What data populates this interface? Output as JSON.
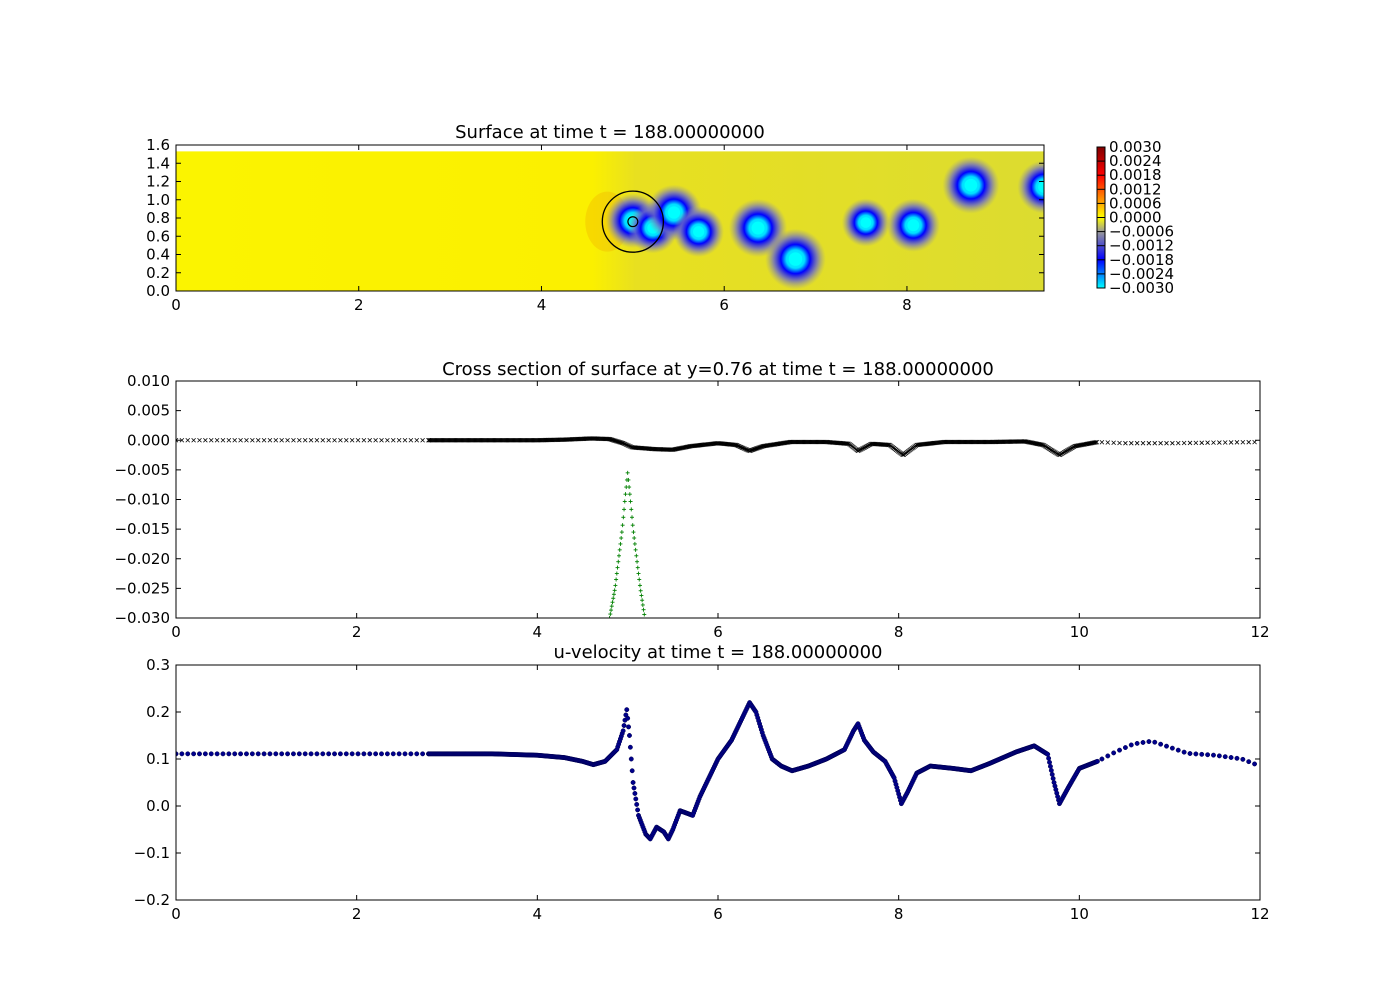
{
  "figure": {
    "background": "#ffffff"
  },
  "chart_data": [
    {
      "type": "heatmap",
      "title": "Surface at time t =   188.00000000",
      "xlim": [
        0,
        9.5
      ],
      "ylim": [
        0,
        1.6
      ],
      "xticks": [
        "0",
        "2",
        "4",
        "6",
        "8"
      ],
      "xtick_values": [
        0,
        2,
        4,
        6,
        8
      ],
      "yticks": [
        "0.0",
        "0.2",
        "0.4",
        "0.6",
        "0.8",
        "1.0",
        "1.2",
        "1.4",
        "1.6"
      ],
      "ytick_values": [
        0,
        0.2,
        0.4,
        0.6,
        0.8,
        1.0,
        1.2,
        1.4,
        1.6
      ],
      "domain_ymax": 1.53,
      "background_value": 0.0,
      "colorbar": {
        "vmin": -0.003,
        "vmax": 0.003,
        "ticks": [
          "0.0030",
          "0.0024",
          "0.0018",
          "0.0012",
          "0.0006",
          "0.0000",
          "−0.0006",
          "−0.0012",
          "−0.0018",
          "−0.0024",
          "−0.0030"
        ],
        "tick_values": [
          0.003,
          0.0024,
          0.0018,
          0.0012,
          0.0006,
          0.0,
          -0.0006,
          -0.0012,
          -0.0018,
          -0.0024,
          -0.003
        ],
        "colors": [
          "#00ffff",
          "#0000ff",
          "#9a9a9a",
          "#ffff00",
          "#ff0000",
          "#800000"
        ]
      },
      "vortices": [
        {
          "x": 5.0,
          "y": 0.77,
          "strength": -0.0025
        },
        {
          "x": 5.22,
          "y": 0.69,
          "strength": -0.0022
        },
        {
          "x": 5.45,
          "y": 0.86,
          "strength": -0.0026
        },
        {
          "x": 5.72,
          "y": 0.65,
          "strength": -0.0022
        },
        {
          "x": 6.37,
          "y": 0.69,
          "strength": -0.0028
        },
        {
          "x": 6.78,
          "y": 0.35,
          "strength": -0.003
        },
        {
          "x": 7.55,
          "y": 0.75,
          "strength": -0.002
        },
        {
          "x": 8.07,
          "y": 0.72,
          "strength": -0.0024
        },
        {
          "x": 8.7,
          "y": 1.16,
          "strength": -0.0027
        },
        {
          "x": 9.5,
          "y": 1.14,
          "strength": -0.0024
        }
      ],
      "circle": {
        "x": 5.0,
        "y": 0.76,
        "r": 0.35
      },
      "inner_circle": {
        "x": 5.0,
        "y": 0.76,
        "r": 0.06
      }
    },
    {
      "type": "scatter",
      "title": "Cross section of surface at y=0.76 at time t =   188.00000000",
      "xlim": [
        0,
        12
      ],
      "ylim": [
        -0.03,
        0.01
      ],
      "xticks": [
        "0",
        "2",
        "4",
        "6",
        "8",
        "10",
        "12"
      ],
      "xtick_values": [
        0,
        2,
        4,
        6,
        8,
        10,
        12
      ],
      "yticks": [
        "0.010",
        "0.005",
        "0.000",
        "−0.005",
        "−0.010",
        "−0.015",
        "−0.020",
        "−0.025",
        "−0.030"
      ],
      "ytick_values": [
        0.01,
        0.005,
        0.0,
        -0.005,
        -0.01,
        -0.015,
        -0.02,
        -0.025,
        -0.03
      ],
      "series": [
        {
          "marker": "x",
          "color": "#000000",
          "points": [
            [
              0,
              0
            ],
            [
              0.5,
              0
            ],
            [
              1,
              0
            ],
            [
              1.5,
              0
            ],
            [
              2,
              0
            ],
            [
              2.5,
              0
            ],
            [
              2.8,
              0
            ],
            [
              3.5,
              0
            ],
            [
              4,
              0
            ],
            [
              4.3,
              0.0001
            ],
            [
              4.6,
              0.0003
            ],
            [
              4.8,
              0.0002
            ],
            [
              4.95,
              -0.0005
            ],
            [
              5.05,
              -0.0012
            ],
            [
              5.3,
              -0.0015
            ],
            [
              5.5,
              -0.0016
            ],
            [
              5.7,
              -0.001
            ],
            [
              6.0,
              -0.0005
            ],
            [
              6.2,
              -0.0008
            ],
            [
              6.35,
              -0.0018
            ],
            [
              6.5,
              -0.001
            ],
            [
              6.8,
              -0.0003
            ],
            [
              7.2,
              -0.0003
            ],
            [
              7.45,
              -0.0006
            ],
            [
              7.55,
              -0.0018
            ],
            [
              7.7,
              -0.0006
            ],
            [
              7.9,
              -0.0008
            ],
            [
              8.05,
              -0.0025
            ],
            [
              8.2,
              -0.0008
            ],
            [
              8.5,
              -0.0003
            ],
            [
              9.0,
              -0.0003
            ],
            [
              9.4,
              -0.0002
            ],
            [
              9.6,
              -0.0008
            ],
            [
              9.78,
              -0.0025
            ],
            [
              9.95,
              -0.001
            ],
            [
              10.2,
              -0.0003
            ],
            [
              10.5,
              -0.0005
            ],
            [
              11.0,
              -0.0005
            ],
            [
              11.5,
              -0.0004
            ],
            [
              12,
              -0.0003
            ]
          ]
        },
        {
          "marker": "+",
          "color": "#008000",
          "points": [
            [
              4.8,
              -0.03
            ],
            [
              4.86,
              -0.025
            ],
            [
              4.9,
              -0.02
            ],
            [
              4.94,
              -0.015
            ],
            [
              4.97,
              -0.01
            ],
            [
              5.0,
              -0.0055
            ],
            [
              5.03,
              -0.01
            ],
            [
              5.06,
              -0.015
            ],
            [
              5.1,
              -0.02
            ],
            [
              5.14,
              -0.025
            ],
            [
              5.19,
              -0.03
            ]
          ]
        }
      ]
    },
    {
      "type": "scatter",
      "title": "u-velocity at time t =   188.00000000",
      "xlim": [
        0,
        12
      ],
      "ylim": [
        -0.2,
        0.3
      ],
      "xticks": [
        "0",
        "2",
        "4",
        "6",
        "8",
        "10",
        "12"
      ],
      "xtick_values": [
        0,
        2,
        4,
        6,
        8,
        10,
        12
      ],
      "yticks": [
        "0.3",
        "0.2",
        "0.1",
        "0.0",
        "−0.1",
        "−0.2"
      ],
      "ytick_values": [
        0.3,
        0.2,
        0.1,
        0.0,
        -0.1,
        -0.2
      ],
      "series": [
        {
          "marker": "o",
          "color": "#00008b",
          "points": [
            [
              0,
              0.111
            ],
            [
              1,
              0.111
            ],
            [
              2,
              0.111
            ],
            [
              2.8,
              0.111
            ],
            [
              3.5,
              0.111
            ],
            [
              4,
              0.108
            ],
            [
              4.3,
              0.103
            ],
            [
              4.5,
              0.095
            ],
            [
              4.62,
              0.088
            ],
            [
              4.75,
              0.095
            ],
            [
              4.88,
              0.12
            ],
            [
              4.95,
              0.16
            ],
            [
              4.99,
              0.205
            ],
            [
              5.02,
              0.15
            ],
            [
              5.06,
              0.05
            ],
            [
              5.12,
              -0.02
            ],
            [
              5.2,
              -0.06
            ],
            [
              5.25,
              -0.07
            ],
            [
              5.32,
              -0.045
            ],
            [
              5.4,
              -0.055
            ],
            [
              5.45,
              -0.07
            ],
            [
              5.5,
              -0.05
            ],
            [
              5.58,
              -0.01
            ],
            [
              5.65,
              -0.015
            ],
            [
              5.72,
              -0.02
            ],
            [
              5.8,
              0.02
            ],
            [
              5.9,
              0.06
            ],
            [
              6.0,
              0.1
            ],
            [
              6.15,
              0.14
            ],
            [
              6.25,
              0.18
            ],
            [
              6.35,
              0.22
            ],
            [
              6.42,
              0.2
            ],
            [
              6.5,
              0.15
            ],
            [
              6.6,
              0.1
            ],
            [
              6.7,
              0.085
            ],
            [
              6.82,
              0.075
            ],
            [
              7.0,
              0.085
            ],
            [
              7.2,
              0.1
            ],
            [
              7.4,
              0.12
            ],
            [
              7.5,
              0.16
            ],
            [
              7.55,
              0.175
            ],
            [
              7.62,
              0.14
            ],
            [
              7.72,
              0.115
            ],
            [
              7.85,
              0.095
            ],
            [
              7.95,
              0.06
            ],
            [
              8.03,
              0.005
            ],
            [
              8.1,
              0.03
            ],
            [
              8.2,
              0.07
            ],
            [
              8.35,
              0.085
            ],
            [
              8.6,
              0.08
            ],
            [
              8.8,
              0.075
            ],
            [
              9.0,
              0.09
            ],
            [
              9.3,
              0.115
            ],
            [
              9.5,
              0.128
            ],
            [
              9.65,
              0.11
            ],
            [
              9.72,
              0.05
            ],
            [
              9.78,
              0.005
            ],
            [
              9.88,
              0.04
            ],
            [
              10.0,
              0.08
            ],
            [
              10.2,
              0.095
            ],
            [
              10.4,
              0.115
            ],
            [
              10.6,
              0.132
            ],
            [
              10.8,
              0.138
            ],
            [
              11.0,
              0.125
            ],
            [
              11.2,
              0.112
            ],
            [
              11.5,
              0.108
            ],
            [
              11.8,
              0.1
            ],
            [
              12,
              0.085
            ]
          ]
        }
      ]
    }
  ]
}
